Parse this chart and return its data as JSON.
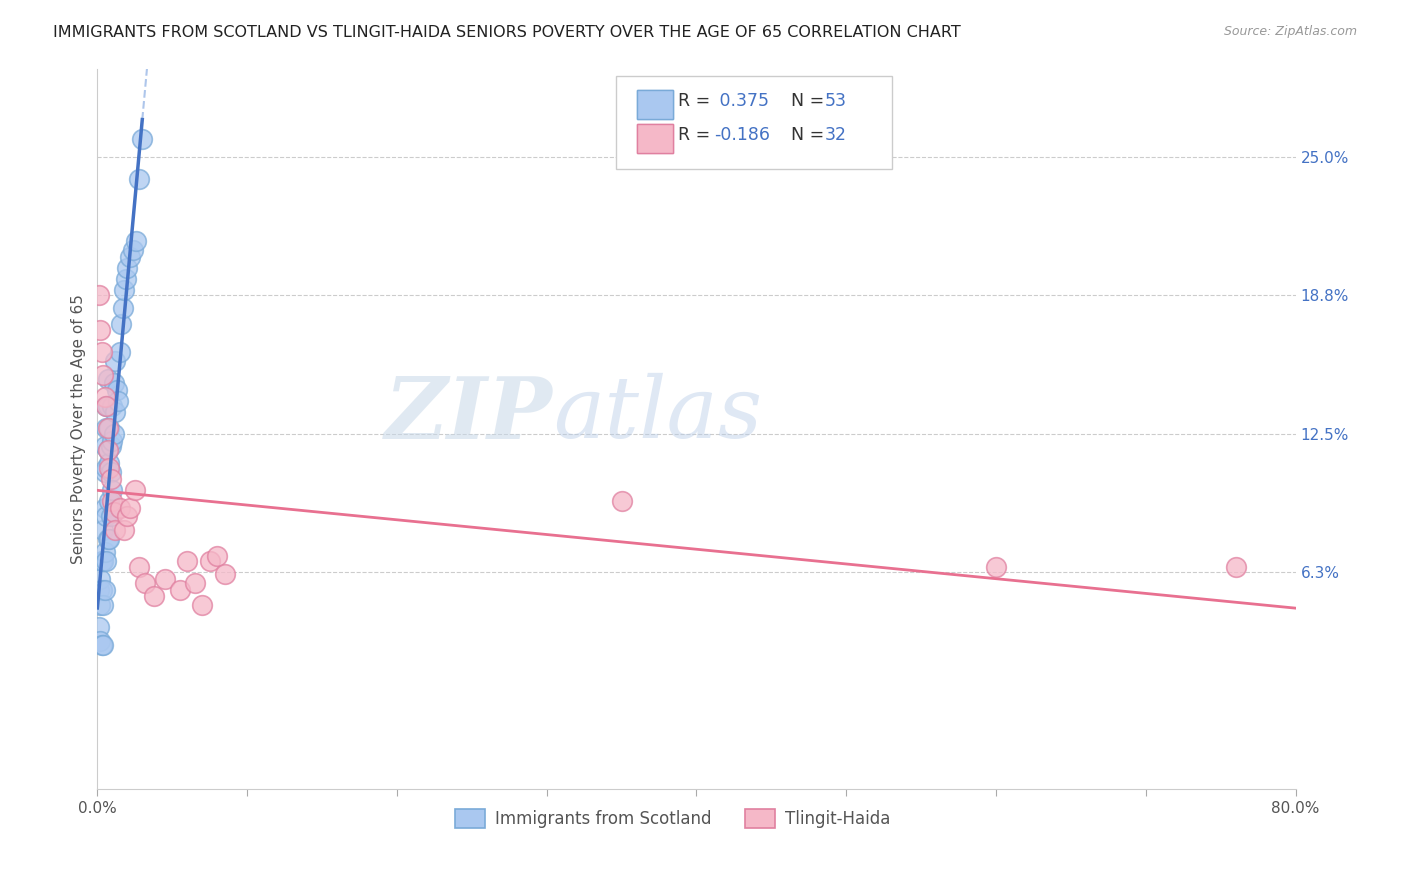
{
  "title": "IMMIGRANTS FROM SCOTLAND VS TLINGIT-HAIDA SENIORS POVERTY OVER THE AGE OF 65 CORRELATION CHART",
  "source": "Source: ZipAtlas.com",
  "ylabel": "Seniors Poverty Over the Age of 65",
  "xlim": [
    0.0,
    0.8
  ],
  "ylim": [
    -0.035,
    0.29
  ],
  "watermark_zip": "ZIP",
  "watermark_atlas": "atlas",
  "scotland_color": "#aac8f0",
  "scotland_edge": "#7aaad8",
  "scotland_line": "#4472c4",
  "scotland_dash": "#a0bce8",
  "tlingit_color": "#f5b8c8",
  "tlingit_edge": "#e080a0",
  "tlingit_line": "#e87090",
  "legend_R1": "R =  0.375",
  "legend_N1": "N = 53",
  "legend_R2": "R = -0.186",
  "legend_N2": "N = 32",
  "ytick_positions": [
    0.063,
    0.125,
    0.188,
    0.25
  ],
  "ytick_labels": [
    "6.3%",
    "12.5%",
    "18.8%",
    "25.0%"
  ],
  "scotland_x": [
    0.001,
    0.001,
    0.002,
    0.002,
    0.002,
    0.003,
    0.003,
    0.003,
    0.004,
    0.004,
    0.004,
    0.004,
    0.005,
    0.005,
    0.005,
    0.005,
    0.005,
    0.006,
    0.006,
    0.006,
    0.006,
    0.006,
    0.007,
    0.007,
    0.007,
    0.007,
    0.008,
    0.008,
    0.008,
    0.008,
    0.009,
    0.009,
    0.009,
    0.01,
    0.01,
    0.01,
    0.011,
    0.011,
    0.012,
    0.012,
    0.013,
    0.014,
    0.015,
    0.016,
    0.017,
    0.018,
    0.019,
    0.02,
    0.022,
    0.024,
    0.026,
    0.028,
    0.03
  ],
  "scotland_y": [
    0.055,
    0.038,
    0.06,
    0.048,
    0.032,
    0.068,
    0.055,
    0.03,
    0.082,
    0.068,
    0.048,
    0.03,
    0.12,
    0.108,
    0.092,
    0.072,
    0.055,
    0.138,
    0.128,
    0.11,
    0.088,
    0.068,
    0.15,
    0.138,
    0.118,
    0.078,
    0.128,
    0.112,
    0.095,
    0.078,
    0.12,
    0.108,
    0.088,
    0.138,
    0.122,
    0.1,
    0.148,
    0.125,
    0.158,
    0.135,
    0.145,
    0.14,
    0.162,
    0.175,
    0.182,
    0.19,
    0.195,
    0.2,
    0.205,
    0.208,
    0.212,
    0.24,
    0.258
  ],
  "tlingit_x": [
    0.001,
    0.002,
    0.003,
    0.004,
    0.005,
    0.006,
    0.007,
    0.007,
    0.008,
    0.009,
    0.01,
    0.011,
    0.012,
    0.015,
    0.018,
    0.02,
    0.022,
    0.025,
    0.028,
    0.032,
    0.038,
    0.045,
    0.055,
    0.06,
    0.065,
    0.07,
    0.075,
    0.08,
    0.085,
    0.35,
    0.6,
    0.76
  ],
  "tlingit_y": [
    0.188,
    0.172,
    0.162,
    0.152,
    0.142,
    0.138,
    0.128,
    0.118,
    0.11,
    0.105,
    0.095,
    0.09,
    0.082,
    0.092,
    0.082,
    0.088,
    0.092,
    0.1,
    0.065,
    0.058,
    0.052,
    0.06,
    0.055,
    0.068,
    0.058,
    0.048,
    0.068,
    0.07,
    0.062,
    0.095,
    0.065,
    0.065
  ]
}
